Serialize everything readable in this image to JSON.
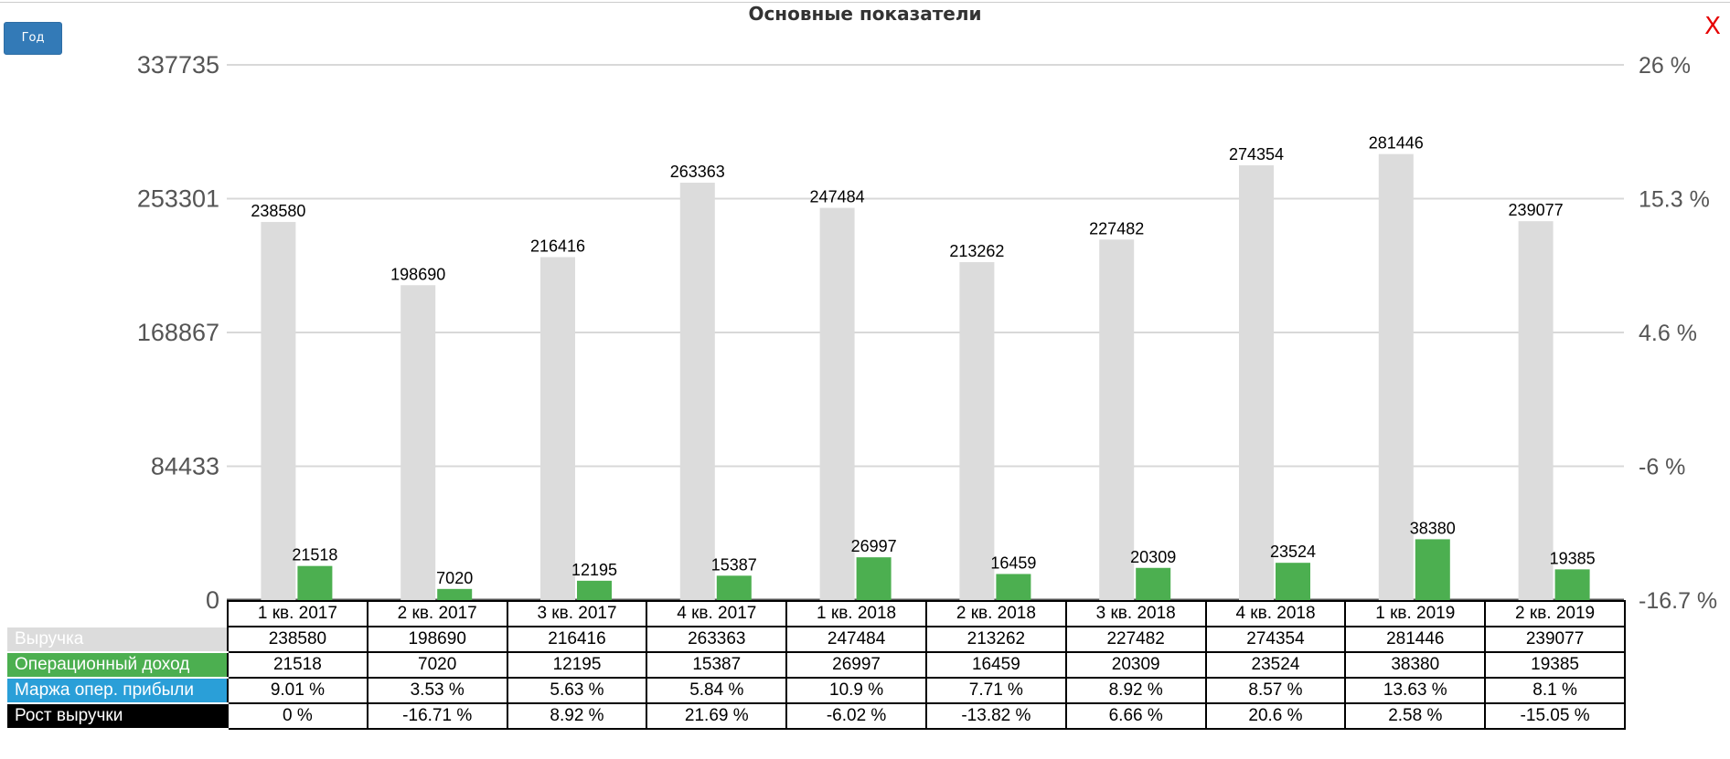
{
  "header": {
    "title": "Основные показатели",
    "period_button": "Год",
    "close_label": "X"
  },
  "colors": {
    "revenue": "#dcdcdc",
    "operating_income": "#4caf50",
    "margin": "#2a9fd8",
    "growth": "#000000",
    "close": "#e60000",
    "button": "#337ab7"
  },
  "chart_data": {
    "type": "bar",
    "title": "Основные показатели",
    "categories": [
      "1 кв. 2017",
      "2 кв. 2017",
      "3 кв. 2017",
      "4 кв. 2017",
      "1 кв. 2018",
      "2 кв. 2018",
      "3 кв. 2018",
      "4 кв. 2018",
      "1 кв. 2019",
      "2 кв. 2019"
    ],
    "series": [
      {
        "name": "Выручка",
        "values": [
          238580,
          198690,
          216416,
          263363,
          247484,
          213262,
          227482,
          274354,
          281446,
          239077
        ]
      },
      {
        "name": "Операционный доход",
        "values": [
          21518,
          7020,
          12195,
          15387,
          26997,
          16459,
          20309,
          23524,
          38380,
          19385
        ]
      }
    ],
    "ylim": [
      0,
      337735
    ],
    "yticks": [
      "337735",
      "253301",
      "168867",
      "84433",
      "0"
    ],
    "y2ticks": [
      "26 %",
      "15.3 %",
      "4.6 %",
      "-6 %",
      "-16.7 %"
    ],
    "grid": true
  },
  "table": {
    "rows": [
      {
        "label": "Выручка",
        "values": [
          "238580",
          "198690",
          "216416",
          "263363",
          "247484",
          "213262",
          "227482",
          "274354",
          "281446",
          "239077"
        ]
      },
      {
        "label": "Операционный доход",
        "values": [
          "21518",
          "7020",
          "12195",
          "15387",
          "26997",
          "16459",
          "20309",
          "23524",
          "38380",
          "19385"
        ]
      },
      {
        "label": "Маржа опер. прибыли",
        "values": [
          "9.01 %",
          "3.53 %",
          "5.63 %",
          "5.84 %",
          "10.9 %",
          "7.71 %",
          "8.92 %",
          "8.57 %",
          "13.63 %",
          "8.1 %"
        ]
      },
      {
        "label": "Рост выручки",
        "values": [
          "0 %",
          "-16.71 %",
          "8.92 %",
          "21.69 %",
          "-6.02 %",
          "-13.82 %",
          "6.66 %",
          "20.6 %",
          "2.58 %",
          "-15.05 %"
        ]
      }
    ]
  }
}
